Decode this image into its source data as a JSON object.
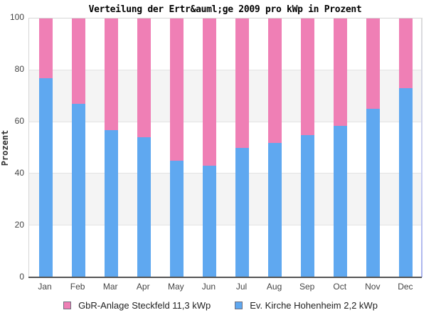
{
  "title": "Verteilung der Ertr&auml;ge 2009 pro kWp in Prozent",
  "ylabel": "Prozent",
  "colors": {
    "pink": "#ef7fb5",
    "blue": "#5fa8f0",
    "band_gray": "#f4f4f4",
    "gridline": "#e3e3e3",
    "axis_line": "#555555",
    "swatch_border": "#6f6f7e"
  },
  "chart_data": {
    "type": "bar",
    "stacked": true,
    "title": "Verteilung der Ertr&auml;ge 2009 pro kWp in Prozent",
    "xlabel": "",
    "ylabel": "Prozent",
    "ylim": [
      0,
      100
    ],
    "yticks": [
      0,
      20,
      40,
      60,
      80,
      100
    ],
    "grid": "horizontal-bands-alternating",
    "legend_position": "bottom",
    "categories": [
      "Jan",
      "Feb",
      "Mar",
      "Apr",
      "May",
      "Jun",
      "Jul",
      "Aug",
      "Sep",
      "Oct",
      "Nov",
      "Dec"
    ],
    "series": [
      {
        "name": "GbR-Anlage Steckfeld 11,3 kWp",
        "color": "#ef7fb5",
        "stack_position": "top",
        "values": [
          23,
          33,
          43,
          46,
          55,
          57,
          50,
          48,
          45,
          41.5,
          35,
          27
        ]
      },
      {
        "name": "Ev. Kirche Hohenheim 2,2 kWp",
        "color": "#5fa8f0",
        "stack_position": "bottom",
        "values": [
          77,
          67,
          57,
          54,
          45,
          43,
          50,
          52,
          55,
          58.5,
          65,
          73
        ]
      }
    ]
  },
  "legend": {
    "items": [
      {
        "label": "GbR-Anlage Steckfeld 11,3 kWp",
        "color": "#ef7fb5"
      },
      {
        "label": "Ev. Kirche Hohenheim 2,2 kWp",
        "color": "#5fa8f0"
      }
    ]
  }
}
